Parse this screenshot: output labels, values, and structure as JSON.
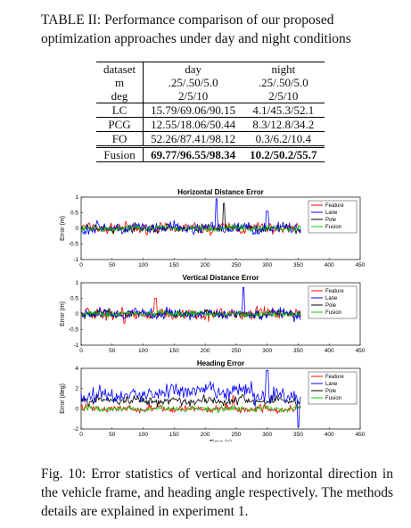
{
  "table_caption": "TABLE II: Performance comparison of our proposed optimization approaches under day and night conditions",
  "table": {
    "headers": [
      "dataset",
      "day",
      "night"
    ],
    "rows": [
      [
        "m",
        ".25/.50/5.0",
        ".25/.50/5.0"
      ],
      [
        "deg",
        "2/5/10",
        "2/5/10"
      ],
      [
        "LC",
        "15.79/69.06/90.15",
        "4.1/45.3/52.1"
      ],
      [
        "PCG",
        "12.55/18.06/50.44",
        "8.3/12.8/34.2"
      ],
      [
        "FO",
        "52.26/87.41/98.12",
        "0.3/6.2/10.4"
      ],
      [
        "Fusion",
        "69.77/96.55/98.34",
        "10.2/50.2/55.7"
      ]
    ]
  },
  "chart_data": [
    {
      "type": "line",
      "title": "Horizontal Distance Error",
      "xlabel": "",
      "ylabel": "Error (m)",
      "xlim": [
        0,
        450
      ],
      "ylim": [
        -1,
        1
      ],
      "xticks": [
        "0",
        "50",
        "100",
        "150",
        "200",
        "250",
        "300",
        "350",
        "400",
        "450"
      ],
      "yticks": [
        "-1",
        "-0.5",
        "0",
        "0.5",
        "1"
      ],
      "legend": [
        "Feature",
        "Lane",
        "Pole",
        "Fusion"
      ],
      "legend_position": "top-right"
    },
    {
      "type": "line",
      "title": "Vertical Distance Error",
      "xlabel": "",
      "ylabel": "Error (m)",
      "xlim": [
        0,
        450
      ],
      "ylim": [
        -1,
        1
      ],
      "xticks": [
        "0",
        "50",
        "100",
        "150",
        "200",
        "250",
        "300",
        "350",
        "400",
        "450"
      ],
      "yticks": [
        "-1",
        "-0.5",
        "0",
        "0.5",
        "1"
      ],
      "legend": [
        "Feature",
        "Lane",
        "Pole",
        "Fusion"
      ],
      "legend_position": "top-right"
    },
    {
      "type": "line",
      "title": "Heading Error",
      "xlabel": "Time (s)",
      "ylabel": "Error (deg)",
      "xlim": [
        0,
        450
      ],
      "ylim": [
        -2,
        4
      ],
      "xticks": [
        "0",
        "50",
        "100",
        "150",
        "200",
        "250",
        "300",
        "350",
        "400",
        "450"
      ],
      "yticks": [
        "-2",
        "0",
        "2",
        "4"
      ],
      "legend": [
        "Feature",
        "Lane",
        "Pole",
        "Fusion"
      ],
      "legend_position": "top-right"
    }
  ],
  "series_colors": {
    "Feature": "#ff0000",
    "Lane": "#0000ff",
    "Pole": "#000000",
    "Fusion": "#00cc00"
  },
  "figure_caption": "Fig. 10: Error statistics of vertical and horizontal direction in the vehicle frame, and heading angle respectively. The methods details are explained in experiment 1."
}
